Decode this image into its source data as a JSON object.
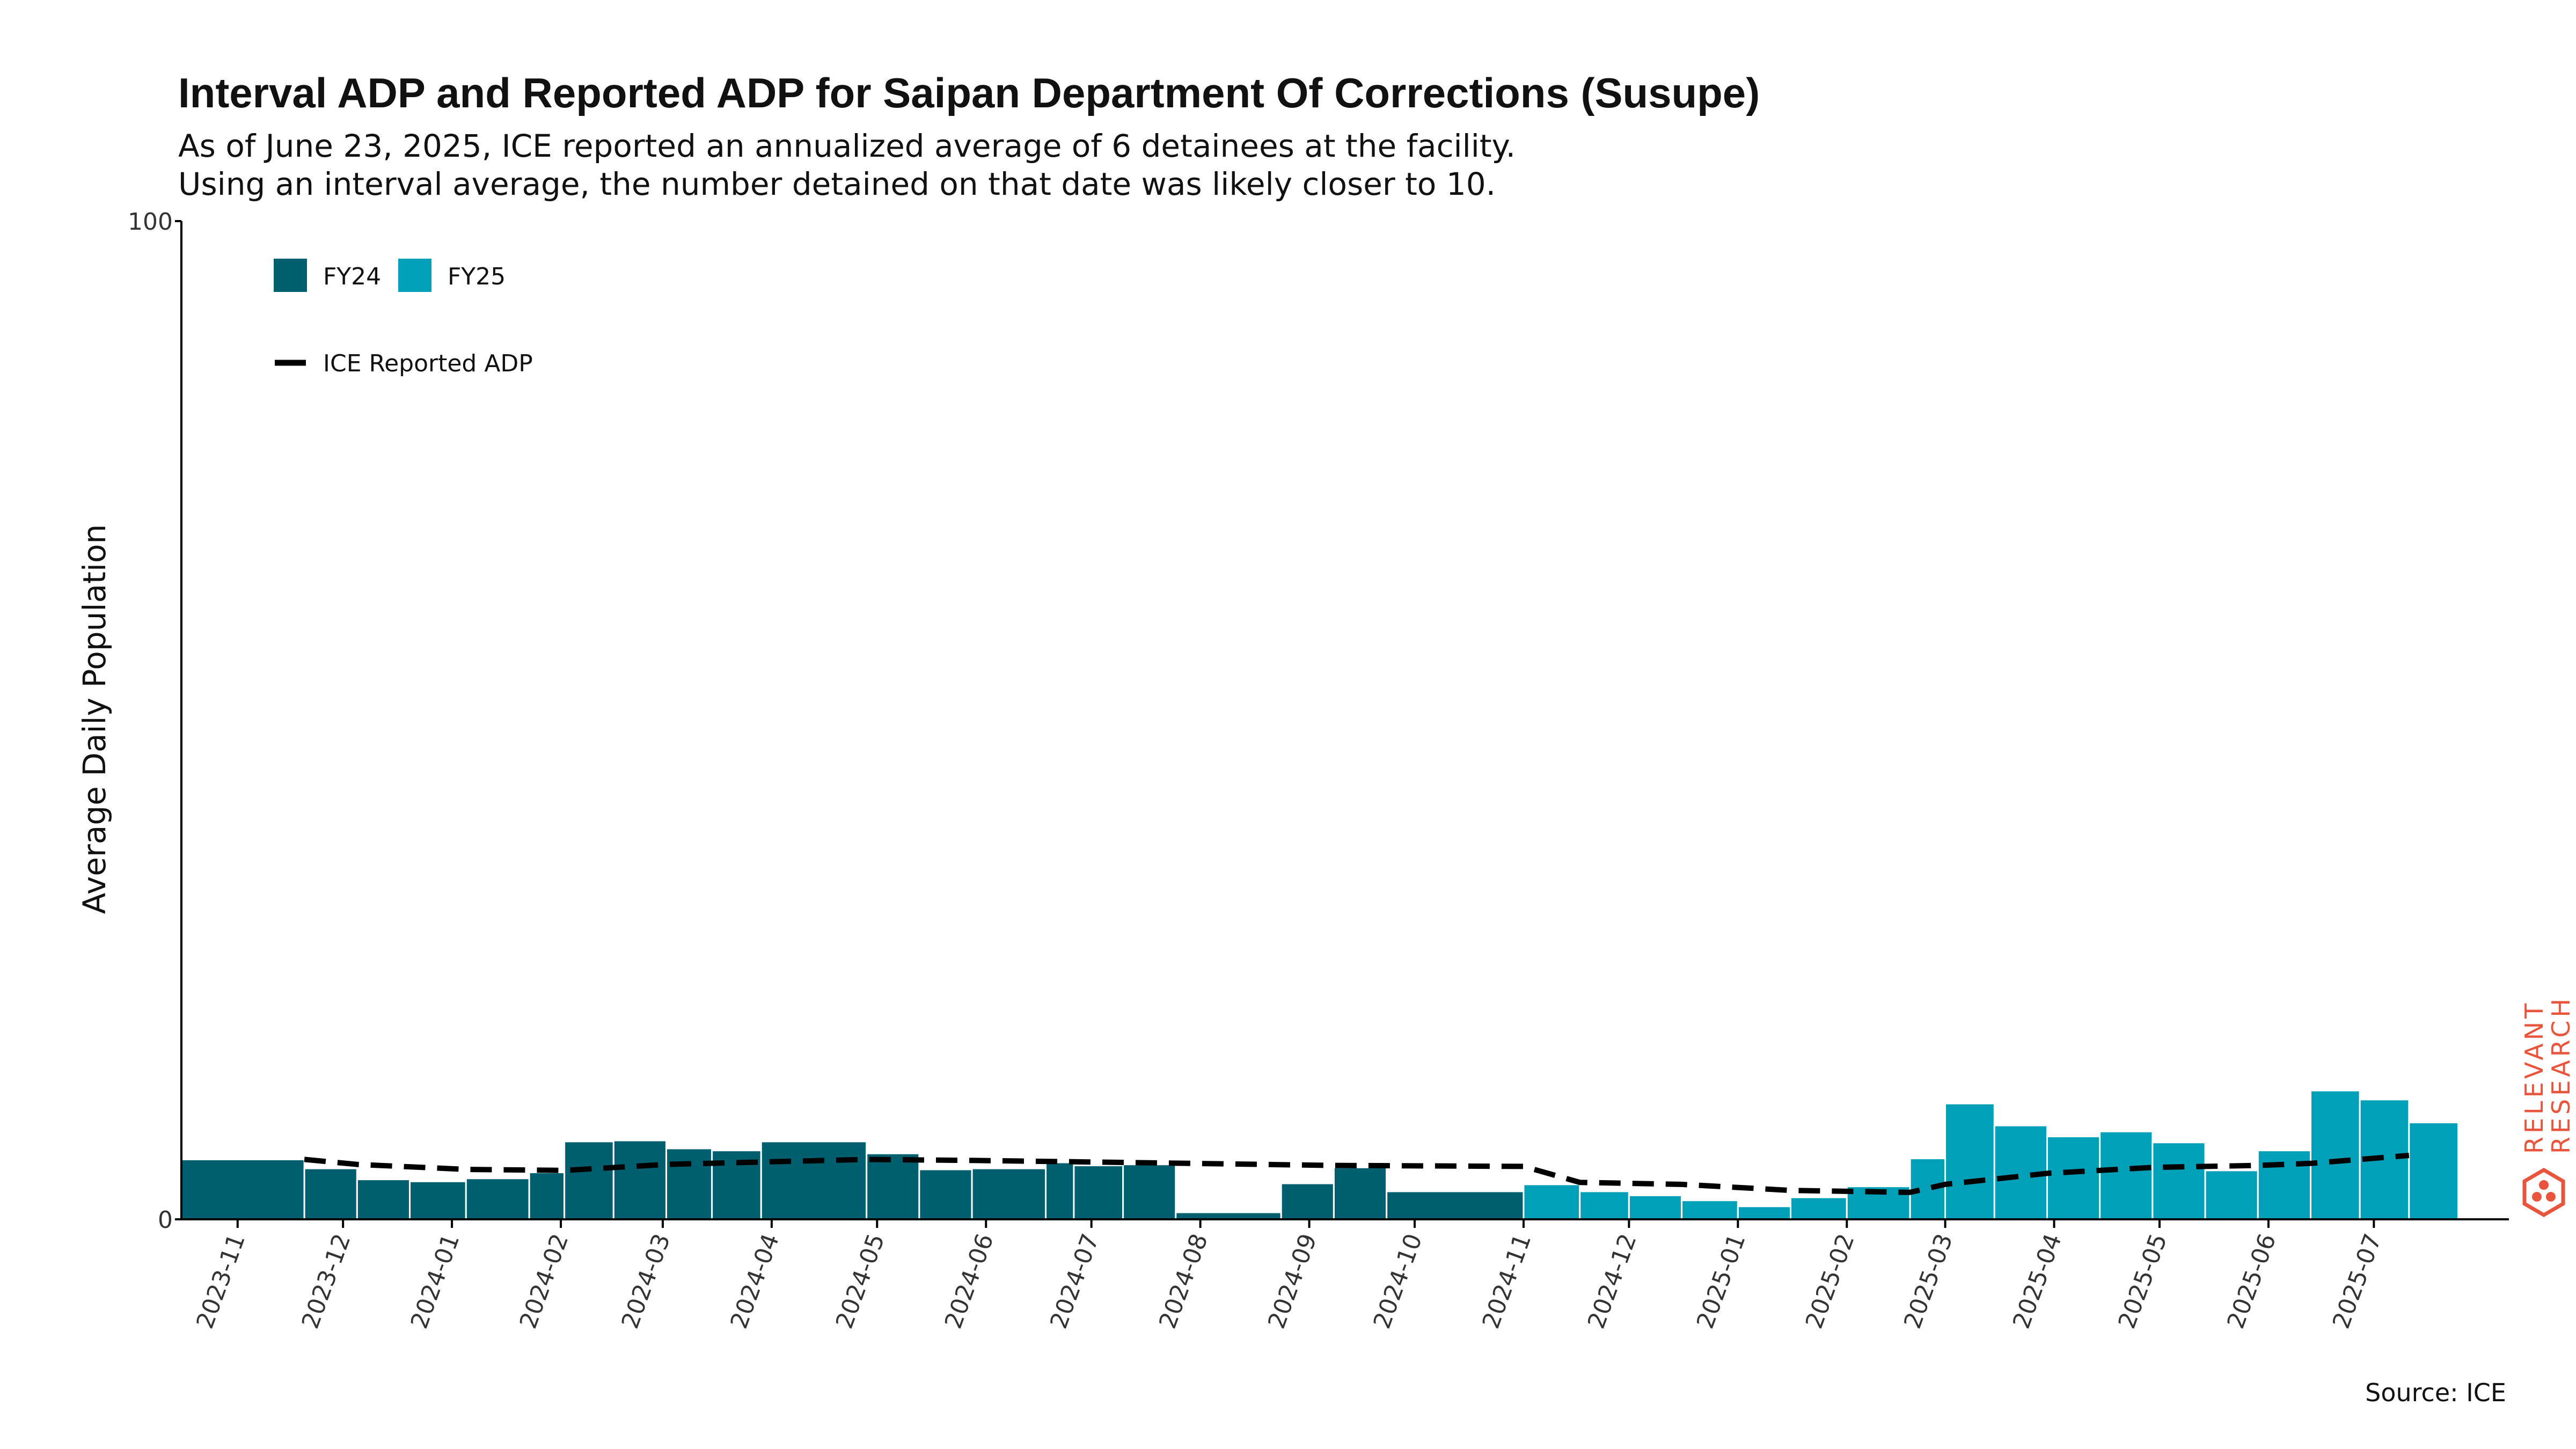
{
  "title": "Interval ADP and Reported ADP for Saipan Department Of Corrections (Susupe)",
  "subtitle_lines": [
    "As of June 23, 2025, ICE reported an annualized average of 6 detainees at the facility.",
    "Using an interval average, the number detained on that date was likely closer to 10."
  ],
  "source": "Source: ICE",
  "logo_text": [
    "RELEVANT",
    "RESEARCH"
  ],
  "colors": {
    "FY24": "#005f6e",
    "FY25": "#00a0b8",
    "reported": "#000000",
    "logo": "#e8553c",
    "axis": "#000000"
  },
  "chart_data": {
    "type": "bar",
    "ylabel": "Average Daily Population",
    "xlabel": "",
    "ylim": [
      0,
      100
    ],
    "y_ticks": [
      0,
      100
    ],
    "x_range": [
      "2023-10-16",
      "2025-07-15"
    ],
    "x_ticks": [
      "2023-11",
      "2023-12",
      "2024-01",
      "2024-02",
      "2024-03",
      "2024-04",
      "2024-05",
      "2024-06",
      "2024-07",
      "2024-08",
      "2024-09",
      "2024-10",
      "2024-11",
      "2024-12",
      "2025-01",
      "2025-02",
      "2025-03",
      "2025-04",
      "2025-05",
      "2025-06",
      "2025-07"
    ],
    "legend": [
      {
        "label": "FY24",
        "color": "#005f6e",
        "kind": "bar"
      },
      {
        "label": "FY25",
        "color": "#00a0b8",
        "kind": "bar"
      },
      {
        "label": "ICE Reported ADP",
        "color": "#000000",
        "kind": "dashed-line"
      }
    ],
    "series": [
      {
        "name": "FY24",
        "bars": [
          {
            "start": "2023-10-16",
            "end": "2023-11-20",
            "value": 6.0
          },
          {
            "start": "2023-11-20",
            "end": "2023-12-05",
            "value": 5.1
          },
          {
            "start": "2023-12-05",
            "end": "2023-12-20",
            "value": 4.0
          },
          {
            "start": "2023-12-20",
            "end": "2024-01-05",
            "value": 3.8
          },
          {
            "start": "2024-01-05",
            "end": "2024-01-23",
            "value": 4.1
          },
          {
            "start": "2024-01-23",
            "end": "2024-02-02",
            "value": 4.7
          },
          {
            "start": "2024-02-02",
            "end": "2024-02-16",
            "value": 7.8
          },
          {
            "start": "2024-02-16",
            "end": "2024-03-02",
            "value": 7.9
          },
          {
            "start": "2024-03-02",
            "end": "2024-03-15",
            "value": 7.1
          },
          {
            "start": "2024-03-15",
            "end": "2024-03-29",
            "value": 6.9
          },
          {
            "start": "2024-03-29",
            "end": "2024-04-28",
            "value": 7.8
          },
          {
            "start": "2024-04-28",
            "end": "2024-05-13",
            "value": 6.6
          },
          {
            "start": "2024-05-13",
            "end": "2024-05-28",
            "value": 5.0
          },
          {
            "start": "2024-05-28",
            "end": "2024-06-18",
            "value": 5.1
          },
          {
            "start": "2024-06-18",
            "end": "2024-06-26",
            "value": 5.7
          },
          {
            "start": "2024-06-26",
            "end": "2024-07-10",
            "value": 5.4
          },
          {
            "start": "2024-07-10",
            "end": "2024-07-25",
            "value": 5.5
          },
          {
            "start": "2024-07-25",
            "end": "2024-08-24",
            "value": 0.7
          },
          {
            "start": "2024-08-24",
            "end": "2024-09-08",
            "value": 3.6
          },
          {
            "start": "2024-09-08",
            "end": "2024-09-23",
            "value": 5.2
          },
          {
            "start": "2024-09-23",
            "end": "2024-11-01",
            "value": 2.8
          }
        ]
      },
      {
        "name": "FY25",
        "bars": [
          {
            "start": "2024-11-01",
            "end": "2024-11-17",
            "value": 3.5
          },
          {
            "start": "2024-11-17",
            "end": "2024-12-01",
            "value": 2.8
          },
          {
            "start": "2024-12-01",
            "end": "2024-12-16",
            "value": 2.4
          },
          {
            "start": "2024-12-16",
            "end": "2025-01-01",
            "value": 1.9
          },
          {
            "start": "2025-01-01",
            "end": "2025-01-16",
            "value": 1.3
          },
          {
            "start": "2025-01-16",
            "end": "2025-02-01",
            "value": 2.2
          },
          {
            "start": "2025-02-01",
            "end": "2025-02-19",
            "value": 3.3
          },
          {
            "start": "2025-02-19",
            "end": "2025-03-01",
            "value": 6.1
          },
          {
            "start": "2025-03-01",
            "end": "2025-03-15",
            "value": 11.6
          },
          {
            "start": "2025-03-15",
            "end": "2025-03-30",
            "value": 9.4
          },
          {
            "start": "2025-03-30",
            "end": "2025-04-14",
            "value": 8.3
          },
          {
            "start": "2025-04-14",
            "end": "2025-04-29",
            "value": 8.8
          },
          {
            "start": "2025-04-29",
            "end": "2025-05-14",
            "value": 7.7
          },
          {
            "start": "2025-05-14",
            "end": "2025-05-29",
            "value": 4.9
          },
          {
            "start": "2025-05-29",
            "end": "2025-06-13",
            "value": 6.9
          },
          {
            "start": "2025-06-13",
            "end": "2025-06-27",
            "value": 12.9
          },
          {
            "start": "2025-06-27",
            "end": "2025-07-11",
            "value": 12.0
          },
          {
            "start": "2025-07-11",
            "end": "2025-07-25",
            "value": 9.7
          }
        ]
      },
      {
        "name": "ICE Reported ADP",
        "points": [
          {
            "date": "2023-11-20",
            "value": 6.0
          },
          {
            "date": "2023-12-05",
            "value": 5.5
          },
          {
            "date": "2024-01-05",
            "value": 5.0
          },
          {
            "date": "2024-02-02",
            "value": 4.9
          },
          {
            "date": "2024-03-02",
            "value": 5.5
          },
          {
            "date": "2024-04-28",
            "value": 6.0
          },
          {
            "date": "2024-05-28",
            "value": 5.9
          },
          {
            "date": "2024-07-10",
            "value": 5.7
          },
          {
            "date": "2024-09-08",
            "value": 5.4
          },
          {
            "date": "2024-11-01",
            "value": 5.3
          },
          {
            "date": "2024-11-17",
            "value": 3.7
          },
          {
            "date": "2024-12-16",
            "value": 3.5
          },
          {
            "date": "2025-01-16",
            "value": 2.9
          },
          {
            "date": "2025-02-19",
            "value": 2.7
          },
          {
            "date": "2025-03-01",
            "value": 3.5
          },
          {
            "date": "2025-03-30",
            "value": 4.6
          },
          {
            "date": "2025-04-29",
            "value": 5.2
          },
          {
            "date": "2025-05-29",
            "value": 5.4
          },
          {
            "date": "2025-06-13",
            "value": 5.6
          },
          {
            "date": "2025-07-11",
            "value": 6.4
          }
        ]
      }
    ]
  }
}
